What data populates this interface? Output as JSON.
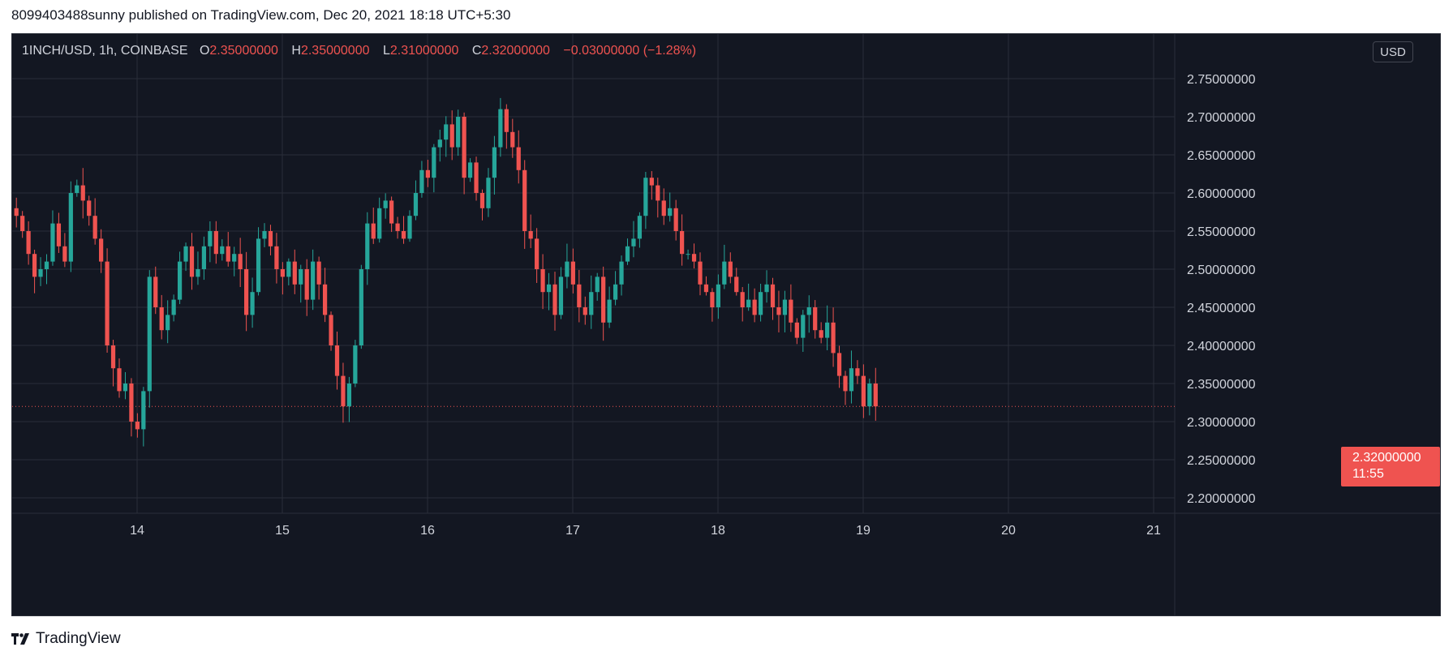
{
  "caption": "8099403488sunny published on TradingView.com, Dec 20, 2021 18:18 UTC+5:30",
  "legend": {
    "symbol": "1INCH/USD, 1h, COINBASE",
    "o_label": "O",
    "o_value": "2.35000000",
    "h_label": "H",
    "h_value": "2.35000000",
    "l_label": "L",
    "l_value": "2.31000000",
    "c_label": "C",
    "c_value": "2.32000000",
    "change": "−0.03000000 (−1.28%)"
  },
  "currency_button": "USD",
  "last_price": {
    "value": "2.32000000",
    "countdown": "11:55"
  },
  "footer_brand": "TradingView",
  "colors": {
    "up": "#26a69a",
    "down": "#ef5350",
    "background": "#131722",
    "grid": "#2a2e39",
    "text": "#d1d4dc"
  },
  "chart_data": {
    "type": "candlestick",
    "interval": "1h",
    "ylim": [
      2.18,
      2.78
    ],
    "y_ticks": [
      "2.75000000",
      "2.70000000",
      "2.65000000",
      "2.60000000",
      "2.55000000",
      "2.50000000",
      "2.45000000",
      "2.40000000",
      "2.35000000",
      "2.30000000",
      "2.25000000",
      "2.20000000"
    ],
    "y_tick_values": [
      2.75,
      2.7,
      2.65,
      2.6,
      2.55,
      2.5,
      2.45,
      2.4,
      2.35,
      2.3,
      2.25,
      2.2
    ],
    "x_ticks": [
      "14",
      "15",
      "16",
      "17",
      "18",
      "19",
      "20",
      "21"
    ],
    "x_tick_days": [
      14,
      15,
      16,
      17,
      18,
      19,
      20,
      21
    ],
    "x_start_day": 13.15,
    "candle_hours": 1,
    "last_close": 2.32,
    "close_path": [
      2.57,
      2.55,
      2.52,
      2.49,
      2.5,
      2.51,
      2.56,
      2.53,
      2.51,
      2.6,
      2.61,
      2.59,
      2.57,
      2.54,
      2.51,
      2.4,
      2.37,
      2.34,
      2.35,
      2.3,
      2.29,
      2.34,
      2.49,
      2.45,
      2.42,
      2.44,
      2.46,
      2.51,
      2.53,
      2.49,
      2.5,
      2.53,
      2.55,
      2.52,
      2.53,
      2.51,
      2.52,
      2.5,
      2.44,
      2.47,
      2.54,
      2.55,
      2.53,
      2.5,
      2.49,
      2.51,
      2.48,
      2.5,
      2.46,
      2.51,
      2.48,
      2.44,
      2.4,
      2.36,
      2.32,
      2.35,
      2.4,
      2.5,
      2.56,
      2.54,
      2.58,
      2.59,
      2.56,
      2.55,
      2.54,
      2.57,
      2.6,
      2.63,
      2.62,
      2.66,
      2.67,
      2.69,
      2.66,
      2.7,
      2.62,
      2.64,
      2.6,
      2.58,
      2.62,
      2.66,
      2.71,
      2.68,
      2.66,
      2.63,
      2.55,
      2.54,
      2.5,
      2.47,
      2.48,
      2.44,
      2.49,
      2.51,
      2.48,
      2.45,
      2.44,
      2.47,
      2.49,
      2.43,
      2.46,
      2.48,
      2.51,
      2.53,
      2.54,
      2.57,
      2.62,
      2.61,
      2.59,
      2.57,
      2.58,
      2.55,
      2.52,
      2.52,
      2.51,
      2.48,
      2.47,
      2.45,
      2.48,
      2.51,
      2.49,
      2.47,
      2.45,
      2.46,
      2.44,
      2.47,
      2.48,
      2.45,
      2.44,
      2.46,
      2.43,
      2.41,
      2.44,
      2.45,
      2.42,
      2.41,
      2.43,
      2.39,
      2.36,
      2.34,
      2.37,
      2.36,
      2.32,
      2.35,
      2.32
    ],
    "note_low": 2.23,
    "note_high": 2.73
  }
}
